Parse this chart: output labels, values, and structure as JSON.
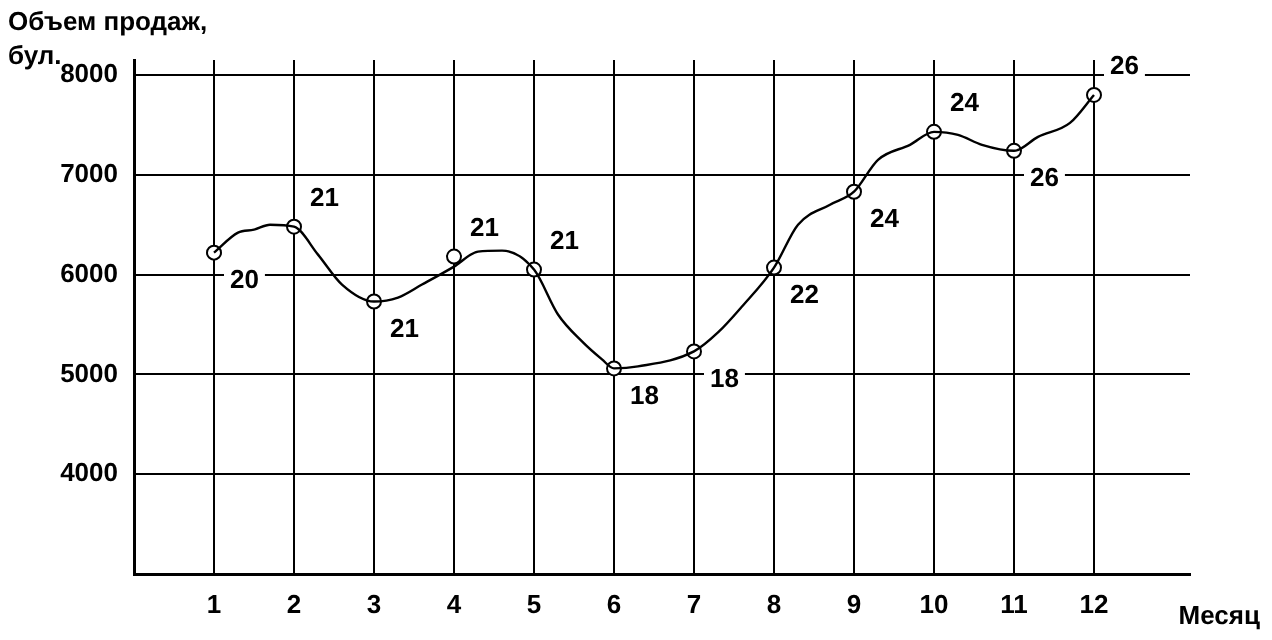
{
  "chart_data": {
    "type": "line",
    "ylabel": "Объем продаж, бул.",
    "xlabel": "Месяц",
    "xlim": [
      0,
      13.2
    ],
    "xticks": [
      1,
      2,
      3,
      4,
      5,
      6,
      7,
      8,
      9,
      10,
      11,
      12
    ],
    "ylim": [
      3000,
      8150
    ],
    "yticks": [
      4000,
      5000,
      6000,
      7000,
      8000
    ],
    "grid": true,
    "legend": false,
    "series": [
      {
        "color": "#000000",
        "marker": "none",
        "x": [
          1,
          1.3,
          1.5,
          1.7,
          2,
          2.3,
          2.6,
          3,
          3.3,
          3.6,
          4,
          4.3,
          4.6,
          5,
          5.3,
          5.6,
          5.85,
          6,
          6.3,
          7,
          7.3,
          7.6,
          8,
          8.3,
          8.7,
          9,
          9.3,
          9.7,
          10,
          10.3,
          10.6,
          11,
          11.3,
          11.7,
          12
        ],
        "values": [
          6220,
          6420,
          6450,
          6500,
          6480,
          6200,
          5900,
          5730,
          5770,
          5900,
          6080,
          6230,
          6240,
          6050,
          5600,
          5330,
          5150,
          5060,
          5080,
          5230,
          5420,
          5680,
          6070,
          6500,
          6700,
          6830,
          7150,
          7300,
          7430,
          7400,
          7300,
          7240,
          7380,
          7520,
          7800
        ]
      },
      {
        "type": "scatter",
        "color": "#000000",
        "marker": "circle",
        "x": [
          1,
          2,
          3,
          4,
          5,
          6,
          7,
          8,
          9,
          10,
          11,
          12
        ],
        "values": [
          6220,
          6480,
          5730,
          6180,
          6050,
          5060,
          5230,
          6070,
          6830,
          7430,
          7240,
          7800
        ]
      }
    ],
    "annotations": [
      {
        "text": "20",
        "x": 1,
        "y": 6220
      },
      {
        "text": "21",
        "x": 2,
        "y": 6480
      },
      {
        "text": "21",
        "x": 3,
        "y": 5730
      },
      {
        "text": "21",
        "x": 4,
        "y": 6180
      },
      {
        "text": "21",
        "x": 5,
        "y": 6050
      },
      {
        "text": "18",
        "x": 6,
        "y": 5060
      },
      {
        "text": "18",
        "x": 7,
        "y": 5230
      },
      {
        "text": "22",
        "x": 8,
        "y": 6070
      },
      {
        "text": "24",
        "x": 9,
        "y": 6830
      },
      {
        "text": "24",
        "x": 10,
        "y": 7430
      },
      {
        "text": "26",
        "x": 11,
        "y": 7240
      },
      {
        "text": "26",
        "x": 12,
        "y": 7800
      }
    ]
  }
}
